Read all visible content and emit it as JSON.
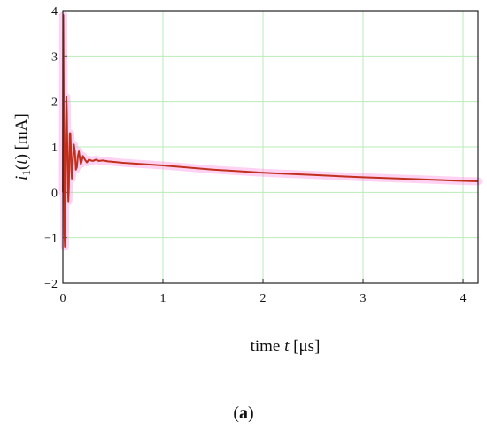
{
  "chart_data": {
    "type": "line",
    "title": "",
    "xlabel_prefix": "time ",
    "xlabel_var": "t",
    "xlabel_unit": " [μs]",
    "ylabel_var": "i",
    "ylabel_sub": "1",
    "ylabel_paren_open": "(",
    "ylabel_arg": "t",
    "ylabel_rest": ") [mA]",
    "xlim": [
      0,
      4.15
    ],
    "ylim": [
      -2,
      4
    ],
    "xticks": [
      0,
      1,
      2,
      3,
      4
    ],
    "yticks": [
      -2,
      -1,
      0,
      1,
      2,
      3,
      4
    ],
    "grid": true,
    "legend": "none",
    "colors": {
      "trace": "#c0301c",
      "halo": "#ff7ddc",
      "grid": "#b9ecb9"
    },
    "series": [
      {
        "x": [
          0,
          0.004,
          0.008,
          0.012,
          0.016,
          0.02,
          0.025,
          0.03,
          0.035,
          0.04,
          0.045,
          0.05,
          0.055,
          0.06,
          0.065,
          0.07,
          0.075,
          0.08,
          0.085,
          0.09,
          0.095,
          0.1,
          0.11,
          0.12,
          0.13,
          0.14,
          0.15,
          0.16,
          0.17,
          0.18,
          0.19,
          0.2,
          0.22,
          0.24,
          0.26,
          0.28,
          0.3,
          0.33,
          0.36,
          0.4,
          0.45,
          0.5,
          0.6,
          0.8,
          1.0,
          1.5,
          2.0,
          2.5,
          3.0,
          3.5,
          4.0,
          4.15
        ],
        "y": [
          0,
          3.9,
          2.5,
          0.6,
          -0.9,
          -1.2,
          -0.2,
          1.3,
          2.1,
          1.8,
          0.9,
          0.1,
          -0.2,
          0.1,
          0.8,
          1.3,
          1.3,
          1.0,
          0.5,
          0.3,
          0.4,
          0.7,
          1.05,
          0.9,
          0.5,
          0.55,
          0.8,
          0.9,
          0.75,
          0.62,
          0.7,
          0.8,
          0.72,
          0.66,
          0.72,
          0.7,
          0.69,
          0.72,
          0.69,
          0.7,
          0.68,
          0.67,
          0.65,
          0.62,
          0.59,
          0.5,
          0.43,
          0.38,
          0.33,
          0.29,
          0.25,
          0.24
        ]
      }
    ]
  },
  "caption": {
    "open": "(",
    "letter": "a",
    "close": ")"
  }
}
